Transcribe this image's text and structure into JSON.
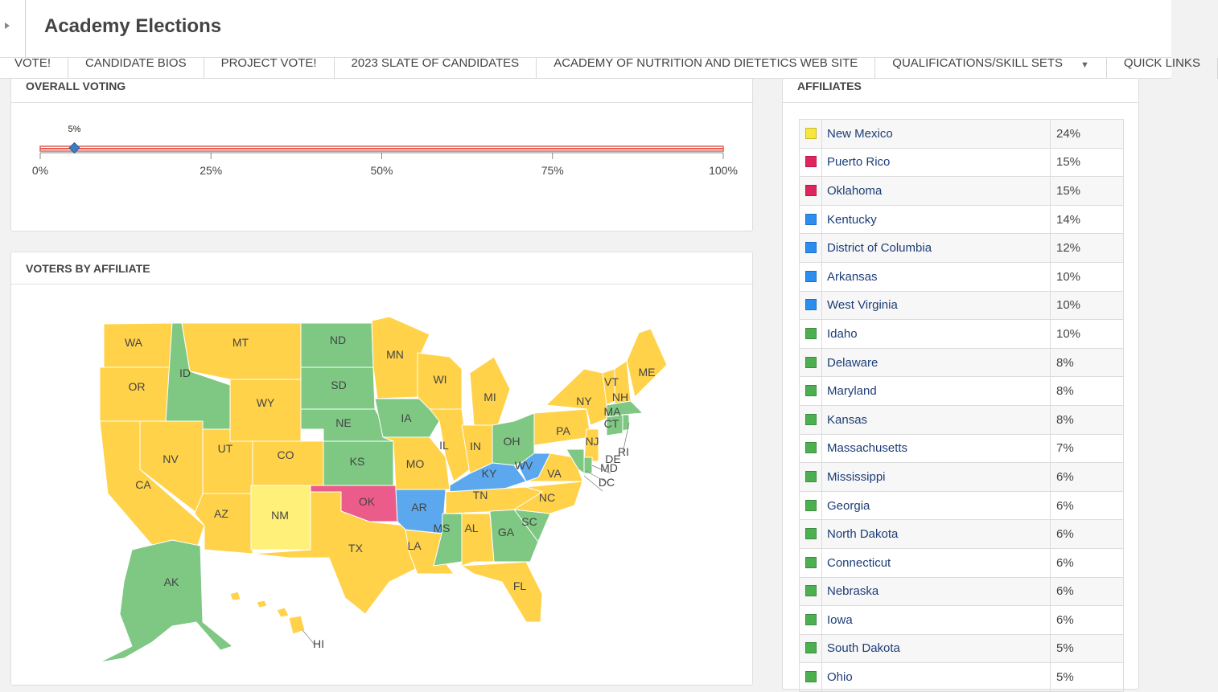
{
  "app": {
    "title": "Academy Elections"
  },
  "nav": [
    {
      "label": "VOTE!"
    },
    {
      "label": "CANDIDATE BIOS"
    },
    {
      "label": "PROJECT VOTE!"
    },
    {
      "label": "2023 SLATE OF CANDIDATES"
    },
    {
      "label": "ACADEMY OF NUTRITION AND DIETETICS WEB SITE"
    },
    {
      "label": "QUALIFICATIONS/SKILL SETS",
      "dropdown": true
    },
    {
      "label": "QUICK LINKS"
    }
  ],
  "overall": {
    "title": "OVERALL VOTING",
    "progress": 5,
    "progress_label": "5%",
    "ticks": [
      "0%",
      "25%",
      "50%",
      "75%",
      "100%"
    ],
    "colors": {
      "bar": "#e35d55",
      "marker": "#3d7dc1"
    }
  },
  "voters": {
    "title": "VOTERS BY AFFILIATE",
    "colors": {
      "yellow": "#ffd24a",
      "light_yellow": "#fff07a",
      "green": "#7ec883",
      "blue": "#5ba8ef",
      "pink": "#ec5c8a"
    },
    "state_labels": [
      "WA",
      "OR",
      "CA",
      "ID",
      "NV",
      "MT",
      "WY",
      "UT",
      "AZ",
      "CO",
      "NM",
      "ND",
      "SD",
      "NE",
      "KS",
      "OK",
      "TX",
      "MN",
      "IA",
      "MO",
      "AR",
      "LA",
      "WI",
      "IL",
      "MI",
      "IN",
      "OH",
      "KY",
      "TN",
      "MS",
      "AL",
      "GA",
      "FL",
      "SC",
      "NC",
      "VA",
      "WV",
      "PA",
      "NY",
      "VT",
      "NH",
      "ME",
      "MA",
      "CT",
      "RI",
      "NJ",
      "DE",
      "MD",
      "DC",
      "AK",
      "HI"
    ]
  },
  "affiliates": {
    "title": "AFFILIATES",
    "colors": {
      "yellow": "#f7e63c",
      "pink": "#e0245e",
      "blue": "#2a8df0",
      "green": "#4caf50"
    },
    "rows": [
      {
        "name": "New Mexico",
        "pct": "24%",
        "color": "#f7e63c"
      },
      {
        "name": "Puerto Rico",
        "pct": "15%",
        "color": "#e0245e"
      },
      {
        "name": "Oklahoma",
        "pct": "15%",
        "color": "#e0245e"
      },
      {
        "name": "Kentucky",
        "pct": "14%",
        "color": "#2a8df0"
      },
      {
        "name": "District of Columbia",
        "pct": "12%",
        "color": "#2a8df0"
      },
      {
        "name": "Arkansas",
        "pct": "10%",
        "color": "#2a8df0"
      },
      {
        "name": "West Virginia",
        "pct": "10%",
        "color": "#2a8df0"
      },
      {
        "name": "Idaho",
        "pct": "10%",
        "color": "#4caf50"
      },
      {
        "name": "Delaware",
        "pct": "8%",
        "color": "#4caf50"
      },
      {
        "name": "Maryland",
        "pct": "8%",
        "color": "#4caf50"
      },
      {
        "name": "Kansas",
        "pct": "8%",
        "color": "#4caf50"
      },
      {
        "name": "Massachusetts",
        "pct": "7%",
        "color": "#4caf50"
      },
      {
        "name": "Mississippi",
        "pct": "6%",
        "color": "#4caf50"
      },
      {
        "name": "Georgia",
        "pct": "6%",
        "color": "#4caf50"
      },
      {
        "name": "North Dakota",
        "pct": "6%",
        "color": "#4caf50"
      },
      {
        "name": "Connecticut",
        "pct": "6%",
        "color": "#4caf50"
      },
      {
        "name": "Nebraska",
        "pct": "6%",
        "color": "#4caf50"
      },
      {
        "name": "Iowa",
        "pct": "6%",
        "color": "#4caf50"
      },
      {
        "name": "South Dakota",
        "pct": "5%",
        "color": "#4caf50"
      },
      {
        "name": "Ohio",
        "pct": "5%",
        "color": "#4caf50"
      }
    ]
  }
}
